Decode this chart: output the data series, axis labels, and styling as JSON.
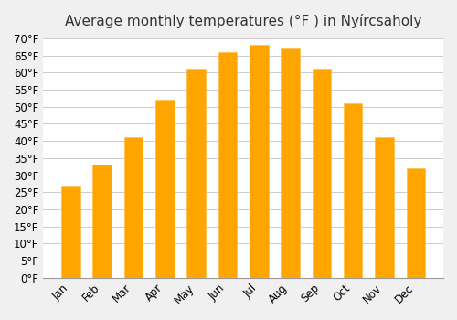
{
  "title": "Average monthly temperatures (°F ) in Nyírcsaholy",
  "months": [
    "Jan",
    "Feb",
    "Mar",
    "Apr",
    "May",
    "Jun",
    "Jul",
    "Aug",
    "Sep",
    "Oct",
    "Nov",
    "Dec"
  ],
  "values": [
    27,
    33,
    41,
    52,
    61,
    66,
    68,
    67,
    61,
    51,
    41,
    32
  ],
  "bar_color": "#FFA500",
  "bar_edge_color": "#FFC04D",
  "background_color": "#F0F0F0",
  "plot_bg_color": "#FFFFFF",
  "ylim": [
    0,
    70
  ],
  "ytick_step": 5,
  "grid_color": "#CCCCCC",
  "title_fontsize": 11,
  "tick_fontsize": 8.5
}
